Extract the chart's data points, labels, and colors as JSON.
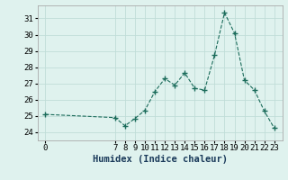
{
  "x": [
    0,
    7,
    8,
    9,
    10,
    11,
    12,
    13,
    14,
    15,
    16,
    17,
    18,
    19,
    20,
    21,
    22,
    23
  ],
  "y": [
    25.1,
    24.9,
    24.4,
    24.85,
    25.35,
    26.5,
    27.3,
    26.9,
    27.65,
    26.7,
    26.6,
    28.75,
    31.35,
    30.1,
    27.2,
    26.6,
    25.3,
    24.25
  ],
  "line_color": "#1a6b5a",
  "marker": "+",
  "marker_color": "#1a6b5a",
  "marker_size": 4,
  "background_color": "#dff2ee",
  "grid_color": "#c0ddd8",
  "xlabel": "Humidex (Indice chaleur)",
  "xlabel_fontsize": 7.5,
  "xtick_labels": [
    "0",
    "7",
    "8",
    "9",
    "10",
    "11",
    "12",
    "13",
    "14",
    "15",
    "16",
    "17",
    "18",
    "19",
    "20",
    "21",
    "22",
    "23"
  ],
  "xtick_positions": [
    0,
    7,
    8,
    9,
    10,
    11,
    12,
    13,
    14,
    15,
    16,
    17,
    18,
    19,
    20,
    21,
    22,
    23
  ],
  "ylim": [
    23.5,
    31.8
  ],
  "xlim": [
    -0.8,
    23.8
  ],
  "yticks": [
    24,
    25,
    26,
    27,
    28,
    29,
    30,
    31
  ],
  "tick_fontsize": 6.5
}
